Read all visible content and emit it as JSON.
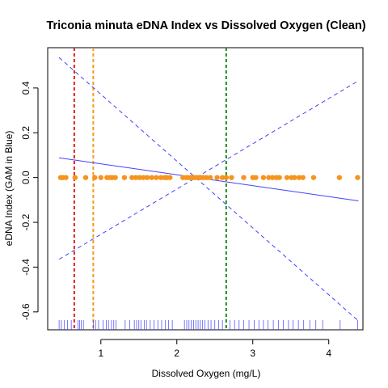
{
  "chart_data": {
    "type": "scatter",
    "title": "Triconia minuta eDNA Index vs Dissolved Oxygen (Clean)",
    "xlabel": "Dissolved Oxygen (mg/L)",
    "ylabel": "eDNA Index (GAM in Blue)",
    "xlim": [
      0.3,
      4.45
    ],
    "ylim": [
      -0.68,
      0.58
    ],
    "x_ticks": [
      1,
      2,
      3,
      4
    ],
    "y_ticks": [
      -0.6,
      -0.4,
      -0.2,
      0.0,
      0.2,
      0.4
    ],
    "x_tick_labels": [
      "1",
      "2",
      "3",
      "4"
    ],
    "y_tick_labels": [
      "-0.6",
      "-0.4",
      "-0.2",
      "0.0",
      "0.2",
      "0.4"
    ],
    "grid": false,
    "legend": "none",
    "points": {
      "color": "#f5941e",
      "x": [
        0.47,
        0.5,
        0.54,
        0.66,
        0.8,
        0.92,
        1.0,
        1.08,
        1.12,
        1.15,
        1.19,
        1.31,
        1.41,
        1.46,
        1.51,
        1.56,
        1.61,
        1.67,
        1.73,
        1.79,
        1.84,
        1.87,
        1.91,
        2.08,
        2.12,
        2.15,
        2.18,
        2.2,
        2.23,
        2.26,
        2.29,
        2.32,
        2.35,
        2.39,
        2.44,
        2.53,
        2.6,
        2.65,
        2.72,
        2.88,
        3.0,
        3.04,
        3.14,
        3.21,
        3.26,
        3.31,
        3.35,
        3.45,
        3.51,
        3.55,
        3.61,
        3.66,
        3.8,
        4.14,
        4.38
      ],
      "y": [
        0,
        0,
        0,
        0,
        0,
        0,
        0,
        0,
        0,
        0,
        0,
        0,
        0,
        0,
        0,
        0,
        0,
        0,
        0,
        0,
        0,
        0,
        0,
        0,
        0,
        0,
        0,
        0,
        0,
        0,
        0,
        0,
        0,
        0,
        0,
        0,
        0,
        0,
        0,
        0,
        0,
        0,
        0,
        0,
        0,
        0,
        0,
        0,
        0,
        0,
        0,
        0,
        0,
        0,
        0
      ]
    },
    "gam_fit": {
      "color": "#4040ff",
      "x": [
        0.45,
        4.39
      ],
      "y": [
        0.088,
        -0.104
      ]
    },
    "gam_ci_upper": {
      "color": "#4040ff",
      "x": [
        0.45,
        4.39
      ],
      "y": [
        -0.365,
        0.432
      ]
    },
    "gam_ci_lower": {
      "color": "#4040ff",
      "x": [
        0.45,
        4.39
      ],
      "y": [
        0.536,
        -0.64
      ]
    },
    "vertical_lines": [
      {
        "x": 0.65,
        "color": "#e0201f"
      },
      {
        "x": 0.9,
        "color": "#f59a1e"
      },
      {
        "x": 2.65,
        "color": "#1a8a1a"
      }
    ],
    "rug": {
      "color": "#4040ff",
      "x": [
        0.45,
        0.48,
        0.52,
        0.56,
        0.61,
        0.7,
        0.72,
        0.74,
        0.77,
        0.9,
        0.93,
        0.97,
        1.03,
        1.07,
        1.1,
        1.14,
        1.17,
        1.2,
        1.32,
        1.38,
        1.44,
        1.47,
        1.5,
        1.53,
        1.57,
        1.6,
        1.65,
        1.7,
        1.75,
        1.8,
        1.85,
        1.89,
        1.94,
        2.1,
        2.13,
        2.16,
        2.19,
        2.22,
        2.25,
        2.28,
        2.31,
        2.34,
        2.37,
        2.41,
        2.45,
        2.5,
        2.55,
        2.6,
        2.7,
        2.76,
        2.82,
        2.88,
        2.95,
        3.02,
        3.08,
        3.14,
        3.2,
        3.27,
        3.34,
        3.4,
        3.47,
        3.53,
        3.6,
        3.67,
        3.75,
        3.83,
        3.92,
        4.15,
        4.38
      ]
    }
  }
}
